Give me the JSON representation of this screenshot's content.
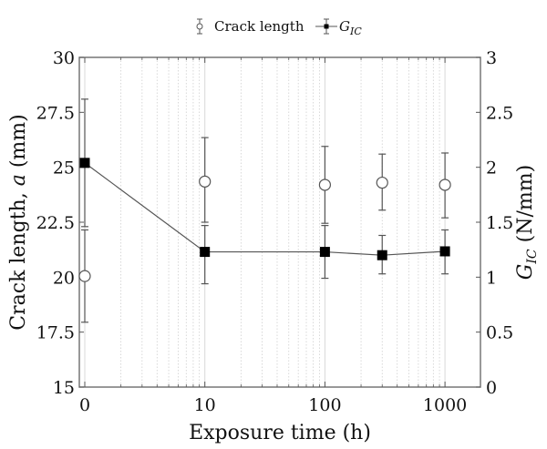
{
  "chart_data": {
    "type": "line",
    "title": "",
    "xlabel": "Exposure time (h)",
    "ylabel_left": "Crack length, a (mm)",
    "ylabel_right": "G_IC (N/mm)",
    "xscale": "log",
    "x_tick_labels": [
      "0",
      "10",
      "100",
      "1000"
    ],
    "x_tick_positions": [
      1,
      10,
      100,
      1000
    ],
    "xlim": [
      0.93,
      1650
    ],
    "ylim_left": [
      15,
      30
    ],
    "ylim_right": [
      0,
      3
    ],
    "y_left_ticks": [
      "15",
      "17.5",
      "20",
      "22.5",
      "25",
      "27.5",
      "30"
    ],
    "y_right_ticks": [
      "0",
      "0.5",
      "1",
      "1.5",
      "2",
      "2.5",
      "3"
    ],
    "grid": "vertical log grid (major solid, minor dotted)",
    "legend_position": "top center, outside plot",
    "legend": [
      "Crack length",
      "G_IC"
    ],
    "x": [
      "0",
      "10",
      "100",
      "300",
      "1000"
    ],
    "series": [
      {
        "name": "Crack length",
        "axis": "left",
        "marker": "open circle",
        "line": false,
        "values": [
          20.05,
          24.35,
          24.2,
          24.3,
          24.2
        ],
        "err_low": [
          17.95,
          22.5,
          22.45,
          23.05,
          22.7
        ],
        "err_high": [
          22.15,
          26.35,
          25.95,
          25.6,
          25.65
        ]
      },
      {
        "name": "G_IC",
        "axis": "right",
        "marker": "filled square",
        "line": true,
        "values": [
          2.04,
          1.23,
          1.23,
          1.2,
          1.235
        ],
        "err_low": [
          1.46,
          0.94,
          0.99,
          1.03,
          1.03
        ],
        "err_high": [
          2.62,
          1.47,
          1.47,
          1.38,
          1.43
        ]
      }
    ]
  },
  "legend": {
    "crack_label": "Crack length",
    "gic_label_main": "G",
    "gic_label_sub": "IC"
  },
  "axes": {
    "xlabel": "Exposure time (h)",
    "ylabel_left_prefix": "Crack length, ",
    "ylabel_left_var": "a",
    "ylabel_left_suffix": " (mm)",
    "ylabel_right_main": "G",
    "ylabel_right_sub": "IC",
    "ylabel_right_suffix": " (N/mm)"
  },
  "colors": {
    "frame": "#777777",
    "major_grid": "#d8d8d8",
    "minor_grid": "#cfcfcf",
    "line": "#555555",
    "marker": "#000000"
  }
}
